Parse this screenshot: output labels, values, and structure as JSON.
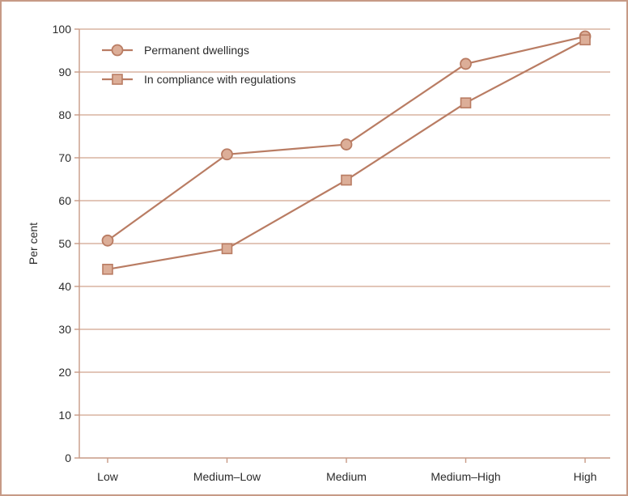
{
  "chart_data": {
    "type": "line",
    "title": "",
    "xlabel": "",
    "ylabel": "Per cent",
    "ylim": [
      0,
      100
    ],
    "yticks": [
      0,
      10,
      20,
      30,
      40,
      50,
      60,
      70,
      80,
      90,
      100
    ],
    "categories": [
      "Low",
      "Medium–Low",
      "Medium",
      "Medium–High",
      "High"
    ],
    "grid": "horizontal",
    "legend_position": "top-left",
    "series": [
      {
        "name": "Permanent dwellings",
        "marker": "circle",
        "values": [
          50.7,
          70.8,
          73.1,
          91.9,
          98.3
        ]
      },
      {
        "name": "In compliance with regulations",
        "marker": "square",
        "values": [
          44.0,
          48.8,
          64.8,
          82.8,
          97.5
        ]
      }
    ],
    "colors": {
      "line": "#b97c63",
      "marker_fill": "#dcae98",
      "marker_stroke": "#b97c63",
      "grid": "#d9b3a1",
      "axis": "#c79a86",
      "frame": "#c79a86"
    }
  }
}
